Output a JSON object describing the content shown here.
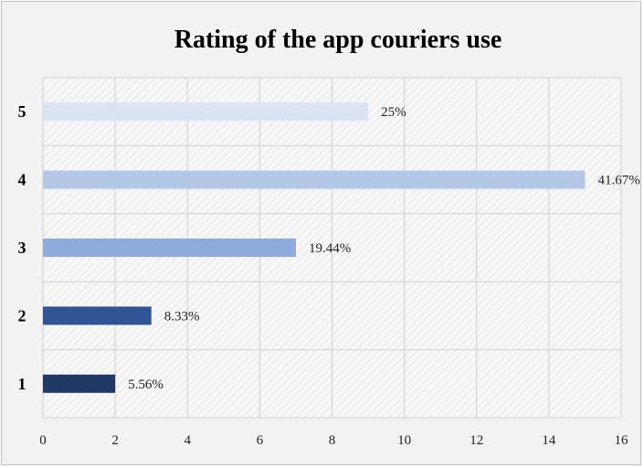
{
  "chart_data": {
    "type": "bar",
    "orientation": "horizontal",
    "title": "Rating of the app couriers use",
    "categories": [
      "1",
      "2",
      "3",
      "4",
      "5"
    ],
    "values": [
      2,
      3,
      7,
      15,
      9
    ],
    "data_labels": [
      "5.56%",
      "8.33%",
      "19.44%",
      "41.67%",
      "25%"
    ],
    "bar_colors": [
      "#1f3864",
      "#2f5597",
      "#8faadc",
      "#b4c7e7",
      "#dae3f3"
    ],
    "xlim": [
      0,
      16
    ],
    "xticks": [
      "0",
      "2",
      "4",
      "6",
      "8",
      "10",
      "12",
      "14",
      "16"
    ],
    "grid": true,
    "legend": "none"
  }
}
